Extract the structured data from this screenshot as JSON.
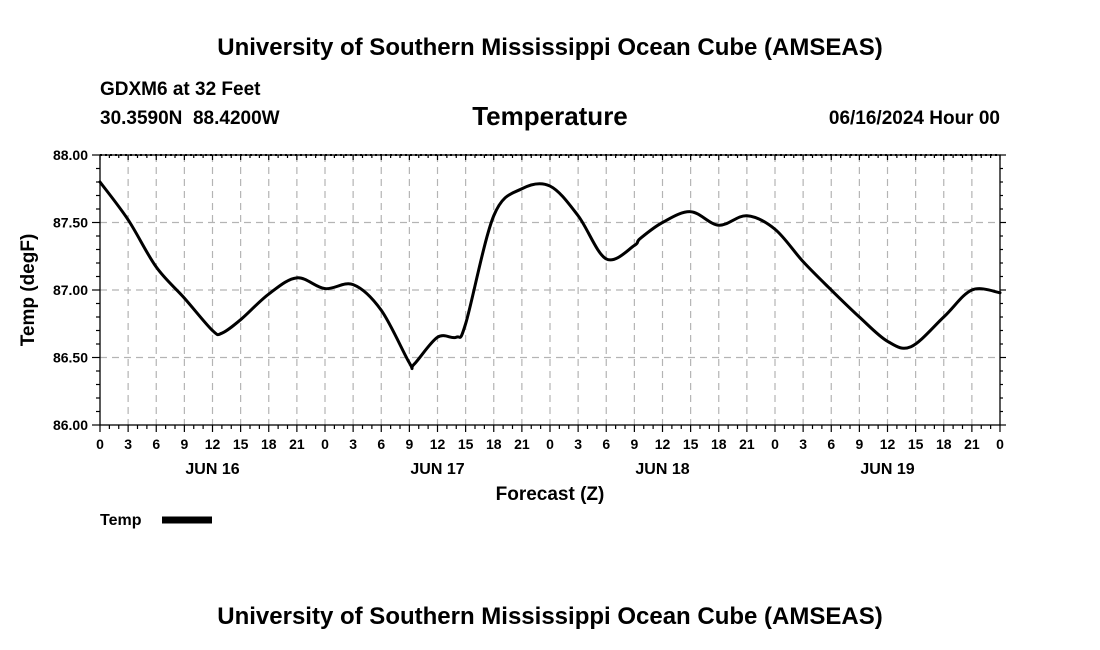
{
  "header": {
    "title": "University of Southern Mississippi Ocean Cube (AMSEAS)",
    "station": "GDXM6 at 32 Feet",
    "coordinates": "30.3590N  88.4200W",
    "panel_title": "Temperature",
    "datetime": "06/16/2024 Hour 00"
  },
  "footer": {
    "title": "University of Southern Mississippi Ocean Cube (AMSEAS)"
  },
  "legend": {
    "label": "Temp"
  },
  "colors": {
    "line": "#000000",
    "grid": "#b4b4b4",
    "background": "#ffffff"
  },
  "chart_data": {
    "type": "line",
    "title": "Temperature",
    "xlabel": "Forecast (Z)",
    "ylabel": "Temp (degF)",
    "xlim": [
      0,
      96
    ],
    "ylim": [
      86.0,
      88.0
    ],
    "grid": true,
    "legend_position": "bottom-left",
    "x_tick_hours": [
      0,
      3,
      6,
      9,
      12,
      15,
      18,
      21,
      24,
      27,
      30,
      33,
      36,
      39,
      42,
      45,
      48,
      51,
      54,
      57,
      60,
      63,
      66,
      69,
      72,
      75,
      78,
      81,
      84,
      87,
      90,
      93,
      96
    ],
    "x_tick_labels": [
      "0",
      "3",
      "6",
      "9",
      "12",
      "15",
      "18",
      "21",
      "0",
      "3",
      "6",
      "9",
      "12",
      "15",
      "18",
      "21",
      "0",
      "3",
      "6",
      "9",
      "12",
      "15",
      "18",
      "21",
      "0",
      "3",
      "6",
      "9",
      "12",
      "15",
      "18",
      "21",
      "0"
    ],
    "y_ticks": [
      86.0,
      86.5,
      87.0,
      87.5,
      88.0
    ],
    "y_tick_labels": [
      "86.00",
      "86.50",
      "87.00",
      "87.50",
      "88.00"
    ],
    "day_labels": [
      {
        "hour": 12,
        "label": "JUN 16"
      },
      {
        "hour": 36,
        "label": "JUN 17"
      },
      {
        "hour": 60,
        "label": "JUN 18"
      },
      {
        "hour": 84,
        "label": "JUN 19"
      }
    ],
    "series": [
      {
        "name": "Temp",
        "x": [
          0,
          3,
          6,
          9,
          12,
          13,
          15,
          18,
          21,
          24,
          27,
          30,
          33,
          33.5,
          36,
          38,
          39,
          42,
          45,
          48,
          51,
          54,
          57,
          57.6,
          60,
          63,
          66,
          69,
          72,
          75,
          78,
          81,
          84,
          86.5,
          90,
          93,
          96
        ],
        "y": [
          87.8,
          87.52,
          87.17,
          86.94,
          86.7,
          86.68,
          86.78,
          86.97,
          87.09,
          87.01,
          87.04,
          86.85,
          86.46,
          86.45,
          86.65,
          86.65,
          86.75,
          87.55,
          87.75,
          87.77,
          87.55,
          87.23,
          87.33,
          87.38,
          87.5,
          87.58,
          87.48,
          87.55,
          87.45,
          87.21,
          87.0,
          86.8,
          86.62,
          86.58,
          86.8,
          87.0,
          86.98
        ]
      }
    ]
  }
}
